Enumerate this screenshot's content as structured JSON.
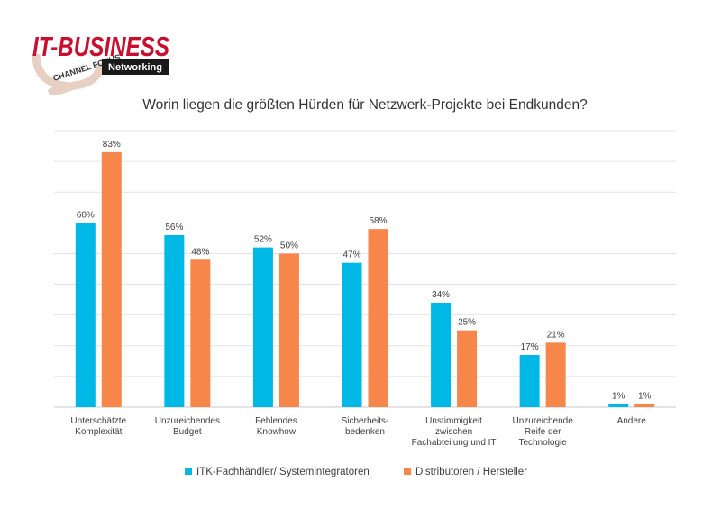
{
  "logo": {
    "brand": "IT-BUSINESS",
    "arc_text": "CHANNEL FOKUS",
    "tag": "Networking",
    "brand_color": "#c8102e"
  },
  "chart_data": {
    "type": "bar",
    "title": "Worin liegen die größten Hürden für Netzwerk-Projekte bei Endkunden?",
    "xlabel": "",
    "ylabel": "",
    "ylim": [
      0,
      90
    ],
    "grid": true,
    "legend_position": "bottom",
    "categories": [
      [
        "Unterschätzte",
        "Komplexität"
      ],
      [
        "Unzureichendes",
        "Budget"
      ],
      [
        "Fehlendes",
        "Knowhow"
      ],
      [
        "Sicherheits-",
        "bedenken"
      ],
      [
        "Unstimmigkeit",
        "zwischen",
        "Fachabteilung und IT"
      ],
      [
        "Unzureichende",
        "Reife der",
        "Technologie"
      ],
      [
        "Andere"
      ]
    ],
    "series": [
      {
        "name": "ITK-Fachhändler/ Systemintegratoren",
        "color": "#00b8e6",
        "values": [
          60,
          56,
          52,
          47,
          34,
          17,
          1
        ],
        "labels": [
          "60%",
          "56%",
          "52%",
          "47%",
          "34%",
          "17%",
          "1%"
        ]
      },
      {
        "name": "Distributoren / Hersteller",
        "color": "#f7864a",
        "values": [
          83,
          48,
          50,
          58,
          25,
          21,
          1
        ],
        "labels": [
          "83%",
          "48%",
          "50%",
          "58%",
          "25%",
          "21%",
          "1%"
        ]
      }
    ]
  }
}
